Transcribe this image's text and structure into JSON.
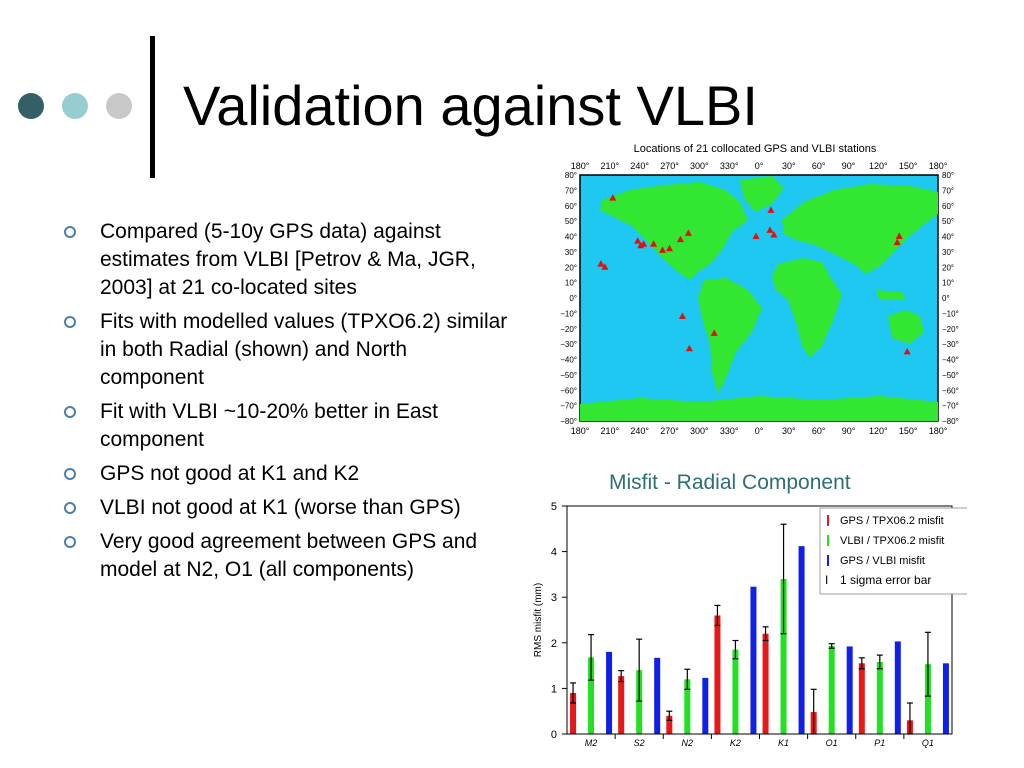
{
  "slide": {
    "title": "Validation against VLBI",
    "decor_colors": [
      "#335f66",
      "#96cdd1",
      "#c8c8c8"
    ]
  },
  "bullets": [
    "Compared (5-10y GPS data) against estimates from VLBI [Petrov & Ma, JGR, 2003] at 21 co-located sites",
    "Fits with modelled values (TPXO6.2) similar in both Radial (shown) and North component",
    "Fit with VLBI ~10-20% better in East component",
    "GPS not good at K1 and K2",
    "VLBI not good at K1 (worse than GPS)",
    "Very good agreement between GPS and model at N2, O1 (all components)"
  ],
  "map": {
    "title": "Locations of 21 collocated GPS and VLBI stations",
    "lon_labels": [
      "180°",
      "210°",
      "240°",
      "270°",
      "300°",
      "330°",
      "0°",
      "30°",
      "60°",
      "90°",
      "120°",
      "150°",
      "180°"
    ],
    "lat_labels": [
      "80°",
      "70°",
      "60°",
      "50°",
      "40°",
      "30°",
      "20°",
      "10°",
      "0°",
      "−10°",
      "−20°",
      "−30°",
      "−40°",
      "−50°",
      "−60°",
      "−70°",
      "−80°"
    ],
    "ocean_color": "#1ec8f0",
    "land_color": "#32e632",
    "marker_color": "#e01010",
    "stations": [
      {
        "lon": -147,
        "lat": 65
      },
      {
        "lon": -122,
        "lat": 37
      },
      {
        "lon": -119,
        "lat": 34
      },
      {
        "lon": -116,
        "lat": 35
      },
      {
        "lon": -106,
        "lat": 35
      },
      {
        "lon": -97,
        "lat": 31
      },
      {
        "lon": -90,
        "lat": 32
      },
      {
        "lon": -79,
        "lat": 38
      },
      {
        "lon": -71,
        "lat": 42
      },
      {
        "lon": -155,
        "lat": 20
      },
      {
        "lon": -159,
        "lat": 22
      },
      {
        "lon": -77,
        "lat": -12
      },
      {
        "lon": -45,
        "lat": -23
      },
      {
        "lon": -70,
        "lat": -33
      },
      {
        "lon": -3,
        "lat": 40
      },
      {
        "lon": 12,
        "lat": 57
      },
      {
        "lon": 11,
        "lat": 44
      },
      {
        "lon": 15,
        "lat": 41
      },
      {
        "lon": 139,
        "lat": 36
      },
      {
        "lon": 141,
        "lat": 40
      },
      {
        "lon": 149,
        "lat": -35
      }
    ]
  },
  "chart_caption": "Misfit - Radial Component",
  "chart_data": {
    "type": "bar",
    "categories": [
      "M2",
      "S2",
      "N2",
      "K2",
      "K1",
      "O1",
      "P1",
      "Q1"
    ],
    "ylabel": "RMS misfit (mm)",
    "ylim": [
      0,
      5
    ],
    "yticks": [
      "0",
      "1",
      "2",
      "3",
      "4",
      "5"
    ],
    "series": [
      {
        "name": "GPS / TPX06.2 misfit",
        "color": "#e81818",
        "values": [
          0.9,
          1.27,
          0.4,
          2.6,
          2.2,
          0.48,
          1.55,
          0.3
        ],
        "err": [
          0.22,
          0.12,
          0.1,
          0.22,
          0.15,
          0.5,
          0.12,
          0.38
        ]
      },
      {
        "name": "VLBI / TPX06.2 misfit",
        "color": "#22e022",
        "values": [
          1.68,
          1.4,
          1.2,
          1.85,
          3.4,
          1.93,
          1.58,
          1.53
        ],
        "err": [
          0.5,
          0.68,
          0.22,
          0.2,
          1.2,
          0.05,
          0.15,
          0.7
        ]
      },
      {
        "name": "GPS / VLBI misfit",
        "color": "#1020e8",
        "values": [
          1.8,
          1.67,
          1.23,
          3.23,
          4.12,
          1.92,
          2.03,
          1.55
        ],
        "err": null
      }
    ],
    "legend_extra": "1 sigma error bar",
    "legend_position": "top-right"
  }
}
